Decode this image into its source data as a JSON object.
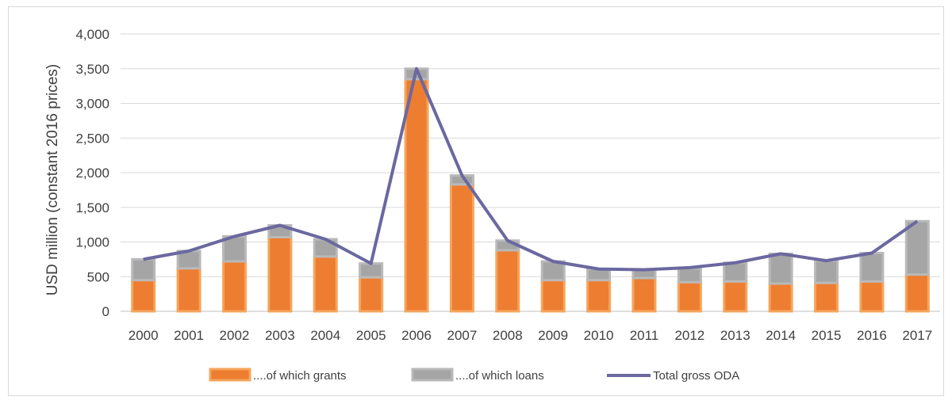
{
  "chart_data": {
    "type": "bar",
    "stacked": true,
    "categories": [
      "2000",
      "2001",
      "2002",
      "2003",
      "2004",
      "2005",
      "2006",
      "2007",
      "2008",
      "2009",
      "2010",
      "2011",
      "2012",
      "2013",
      "2014",
      "2015",
      "2016",
      "2017"
    ],
    "series": [
      {
        "name": "....of which grants",
        "type": "bar",
        "color": "#ed7d31",
        "values": [
          450,
          620,
          720,
          1070,
          790,
          490,
          3350,
          1830,
          880,
          450,
          450,
          480,
          420,
          430,
          400,
          410,
          430,
          530
        ]
      },
      {
        "name": "....of which loans",
        "type": "bar",
        "color": "#a5a5a5",
        "values": [
          300,
          250,
          360,
          170,
          250,
          200,
          150,
          130,
          140,
          270,
          160,
          120,
          200,
          270,
          430,
          320,
          410,
          770
        ]
      },
      {
        "name": "Total gross ODA",
        "type": "line",
        "color": "#6b68a0",
        "values": [
          750,
          870,
          1080,
          1240,
          1040,
          690,
          3500,
          1960,
          1020,
          720,
          610,
          600,
          630,
          700,
          830,
          730,
          840,
          1300
        ]
      }
    ],
    "ylabel": "USD million (constant 2016 prices)",
    "xlabel": "",
    "ylim": [
      0,
      4000
    ],
    "yticks": [
      "0",
      "500",
      "1,000",
      "1,500",
      "2,000",
      "2,500",
      "3,000",
      "3,500",
      "4,000"
    ],
    "ytick_values": [
      0,
      500,
      1000,
      1500,
      2000,
      2500,
      3000,
      3500,
      4000
    ],
    "grid": true,
    "legend_position": "bottom"
  }
}
